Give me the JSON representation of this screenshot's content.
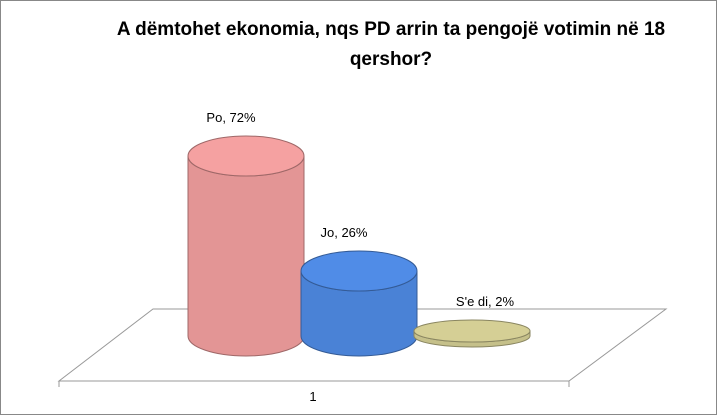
{
  "chart_data": {
    "type": "cylinder",
    "title": "A dëmtohet ekonomia, nqs PD arrin ta pengojë votimin në 18 qershor?",
    "categories": [
      "1"
    ],
    "series": [
      {
        "name": "Po",
        "color": "#e39595",
        "values": [
          72
        ],
        "value_labels": [
          "Po, 72%"
        ]
      },
      {
        "name": "Jo",
        "color": "#4a82d6",
        "values": [
          26
        ],
        "value_labels": [
          "Jo, 26%"
        ]
      },
      {
        "name": "S'e di",
        "color": "#c5c08a",
        "values": [
          2
        ],
        "value_labels": [
          "S'e di, 2%"
        ]
      }
    ]
  }
}
